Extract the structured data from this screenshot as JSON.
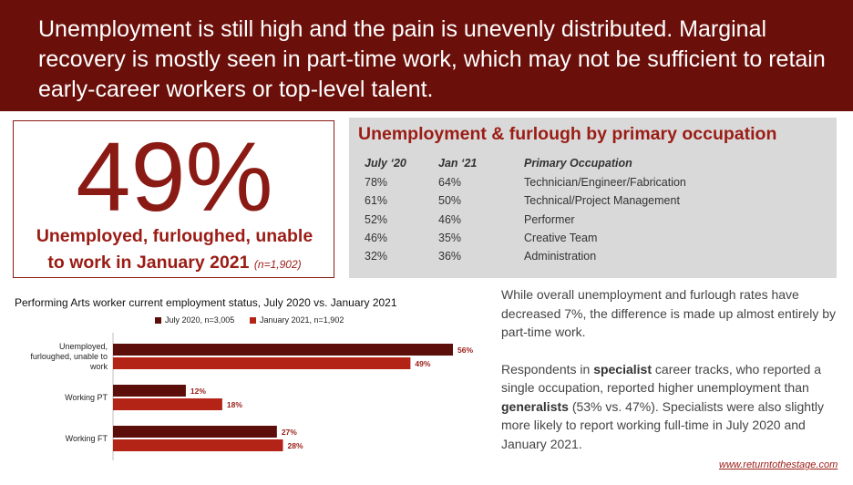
{
  "banner": {
    "text": "Unemployment is still high and the pain is unevenly distributed. Marginal recovery is mostly seen in part-time work, which may not be sufficient to retain early-career workers or top-level talent."
  },
  "stat": {
    "value": "49%",
    "caption_line1": "Unemployed, furloughed, unable",
    "caption_line2": "to work in January 2021",
    "sample": "(n=1,902)"
  },
  "occupation_table": {
    "title": "Unemployment & furlough by primary occupation",
    "headers": [
      "July ‘20",
      "Jan ‘21",
      "Primary Occupation"
    ],
    "rows": [
      {
        "jul": "78%",
        "jan": "64%",
        "occupation": "Technician/Engineer/Fabrication"
      },
      {
        "jul": "61%",
        "jan": "50%",
        "occupation": "Technical/Project Management"
      },
      {
        "jul": "52%",
        "jan": "46%",
        "occupation": "Performer"
      },
      {
        "jul": "46%",
        "jan": "35%",
        "occupation": "Creative Team"
      },
      {
        "jul": "32%",
        "jan": "36%",
        "occupation": "Administration"
      }
    ]
  },
  "chart_data": {
    "type": "bar",
    "orientation": "horizontal",
    "title": "Performing Arts worker current employment status, July 2020 vs. January 2021",
    "categories": [
      "Unemployed, furloughed, unable to work",
      "Working PT",
      "Working FT"
    ],
    "category_lines": [
      [
        "Unemployed,",
        "furloughed, unable to",
        "work"
      ],
      [
        "Working PT"
      ],
      [
        "Working FT"
      ]
    ],
    "series": [
      {
        "name": "July 2020, n=3,005",
        "values": [
          56,
          12,
          27
        ],
        "labels": [
          "56%",
          "12%",
          "27%"
        ],
        "color": "#5c0e0a"
      },
      {
        "name": "January 2021, n=1,902",
        "values": [
          49,
          18,
          28
        ],
        "labels": [
          "49%",
          "18%",
          "28%"
        ],
        "color": "#b32417"
      }
    ],
    "xlim": [
      0,
      60
    ],
    "grid": false,
    "legend_position": "top"
  },
  "body_text": {
    "paragraph1": "While overall unemployment and furlough rates have decreased 7%, the difference is made up almost entirely by part-time work.",
    "p2_a": "Respondents in ",
    "p2_b": "specialist",
    "p2_c": " career tracks, who reported a single occupation, reported higher unemployment than ",
    "p2_d": "generalists",
    "p2_e": " (53% vs. 47%). Specialists were also slightly more likely to report working full-time in July 2020 and January 2021."
  },
  "footer": {
    "link_text": "www.returntothestage.com"
  }
}
